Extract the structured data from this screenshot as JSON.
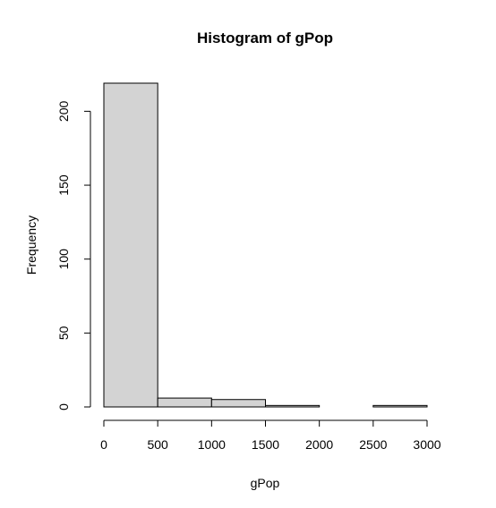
{
  "chart_data": {
    "type": "bar",
    "title": "Histogram of gPop",
    "xlabel": "gPop",
    "ylabel": "Frequency",
    "bins": [
      {
        "start": 0,
        "end": 500,
        "count": 219
      },
      {
        "start": 500,
        "end": 1000,
        "count": 6
      },
      {
        "start": 1000,
        "end": 1500,
        "count": 5
      },
      {
        "start": 1500,
        "end": 2000,
        "count": 1
      },
      {
        "start": 2000,
        "end": 2500,
        "count": 0
      },
      {
        "start": 2500,
        "end": 3000,
        "count": 1
      }
    ],
    "x_ticks": [
      "0",
      "500",
      "1000",
      "1500",
      "2000",
      "2500",
      "3000"
    ],
    "y_ticks": [
      "0",
      "50",
      "100",
      "150",
      "200"
    ],
    "xlim": [
      0,
      3000
    ],
    "ylim": [
      0,
      219
    ],
    "grid": false,
    "bar_fill": "#d3d3d3",
    "bar_stroke": "#000000"
  }
}
